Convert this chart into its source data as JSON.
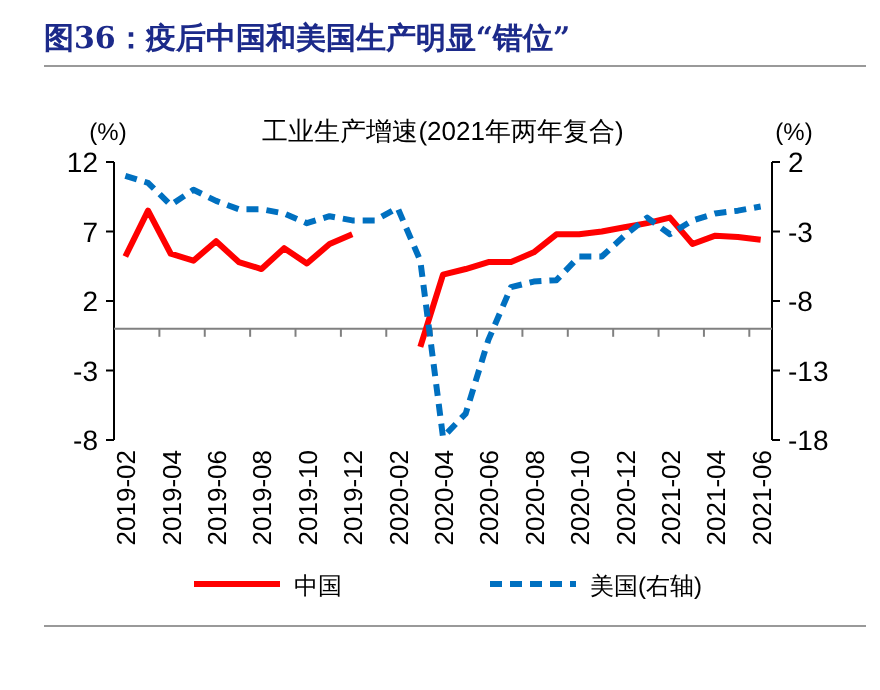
{
  "chart_data": {
    "type": "line",
    "title": "图36：疫后中国和美国生产明显“错位”",
    "subtitle": "工业生产增速(2021年两年复合)",
    "ylabel": "(%)",
    "y2label": "(%)",
    "categories": [
      "2019-02",
      null,
      "2019-04",
      null,
      "2019-06",
      null,
      "2019-08",
      null,
      "2019-10",
      null,
      "2019-12",
      null,
      "2020-02",
      null,
      "2020-04",
      null,
      "2020-06",
      null,
      "2020-08",
      null,
      "2020-10",
      null,
      "2020-12",
      null,
      "2021-02",
      null,
      "2021-04",
      null,
      "2021-06"
    ],
    "series": [
      {
        "name": "中国",
        "color": "#ff0000",
        "line_style": "solid",
        "values": [
          5.2,
          8.5,
          5.4,
          4.9,
          6.3,
          4.8,
          4.3,
          5.8,
          4.7,
          6.1,
          6.8,
          null,
          null,
          -1.3,
          3.9,
          4.3,
          4.8,
          4.8,
          5.5,
          6.8,
          6.8,
          7.0,
          7.3,
          7.6,
          8.0,
          6.1,
          6.7,
          6.6,
          6.4
        ]
      },
      {
        "name": "美国(右轴)",
        "color": "#0070c0",
        "line_style": "dashed",
        "axis": "y2",
        "values": [
          1.0,
          0.5,
          -1.1,
          0.0,
          -0.8,
          -1.4,
          -1.4,
          -1.7,
          -2.4,
          -1.9,
          -2.2,
          -2.2,
          -1.3,
          -5.1,
          -17.8,
          -16.1,
          -10.8,
          -7.0,
          -6.6,
          -6.5,
          -4.8,
          -4.8,
          -3.3,
          -2.0,
          -3.2,
          -2.2,
          -1.7,
          -1.5,
          -1.2
        ]
      }
    ],
    "ylim": [
      -8,
      12
    ],
    "yticks": [
      12,
      7,
      2,
      -3,
      -8
    ],
    "y2lim": [
      -18,
      2
    ],
    "y2ticks": [
      2,
      -3,
      -8,
      -13,
      -18
    ],
    "grid": false,
    "legend": "bottom"
  }
}
